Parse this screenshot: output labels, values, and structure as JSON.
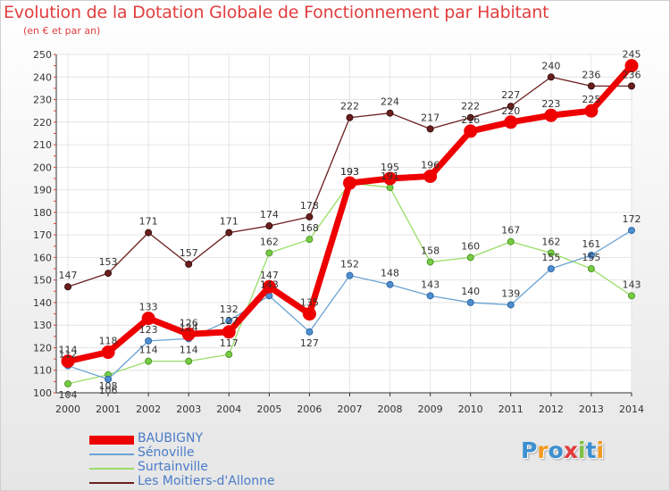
{
  "title": "Evolution de la Dotation Globale de Fonctionnement par Habitant",
  "subtitle": "(en € et par an)",
  "logo": {
    "text": [
      "P",
      "r",
      "o",
      "x",
      "i",
      "t",
      "i"
    ],
    "colors": [
      "#3c8fd0",
      "#f29a1f",
      "#3c8fd0",
      "#e33b3b",
      "#7cc142",
      "#3c8fd0",
      "#f29a1f"
    ]
  },
  "chart_data": {
    "type": "line",
    "title": "Evolution de la Dotation Globale de Fonctionnement par Habitant",
    "ylabel": "(en € et par an)",
    "x": [
      "2000",
      "2001",
      "2002",
      "2003",
      "2004",
      "2005",
      "2006",
      "2007",
      "2008",
      "2009",
      "2010",
      "2011",
      "2012",
      "2013",
      "2014"
    ],
    "ylim": [
      100,
      250
    ],
    "yticks": [
      100,
      110,
      120,
      130,
      140,
      150,
      160,
      170,
      180,
      190,
      200,
      210,
      220,
      230,
      240,
      250
    ],
    "series": [
      {
        "name": "Les Moitiers-d'Allonne",
        "color": "#6b1e1e",
        "values": [
          147,
          153,
          171,
          157,
          171,
          174,
          178,
          222,
          224,
          217,
          222,
          227,
          240,
          236,
          236
        ],
        "labels": [
          "147",
          "153",
          "171",
          "157",
          "171",
          "174",
          "178",
          "222",
          "224",
          "217",
          "222",
          "227",
          "240",
          "236",
          "236"
        ]
      },
      {
        "name": "Surtainville",
        "color": "#99dd66",
        "values": [
          104,
          108,
          114,
          114,
          117,
          162,
          168,
          193,
          191,
          158,
          160,
          167,
          162,
          155,
          143
        ],
        "labels": [
          "104",
          "108",
          "114",
          "114",
          "117",
          "162",
          "168",
          "193",
          "191",
          "158",
          "160",
          "167",
          "162",
          "155",
          "143"
        ]
      },
      {
        "name": "Sénoville",
        "color": "#6aa3d6",
        "values": [
          112,
          106,
          123,
          124,
          132,
          143,
          127,
          152,
          148,
          143,
          140,
          139,
          155,
          161,
          172
        ],
        "labels": [
          "112",
          "106",
          "123",
          "124",
          "132",
          "143",
          "127",
          "152",
          "148",
          "143",
          "140",
          "139",
          "155",
          "161",
          "172"
        ]
      },
      {
        "name": "BAUBIGNY",
        "color": "#ee0000",
        "values": [
          114,
          118,
          133,
          126,
          127,
          147,
          135,
          193,
          195,
          196,
          216,
          220,
          223,
          225,
          245
        ],
        "labels": [
          "114",
          "118",
          "133",
          "126",
          "127",
          "147",
          "135",
          "193",
          "195",
          "196",
          "216",
          "220",
          "223",
          "225",
          "245"
        ]
      }
    ],
    "legend": [
      "BAUBIGNY",
      "Sénoville",
      "Surtainville",
      "Les Moitiers-d'Allonne"
    ],
    "legend_position": "bottom-left"
  }
}
